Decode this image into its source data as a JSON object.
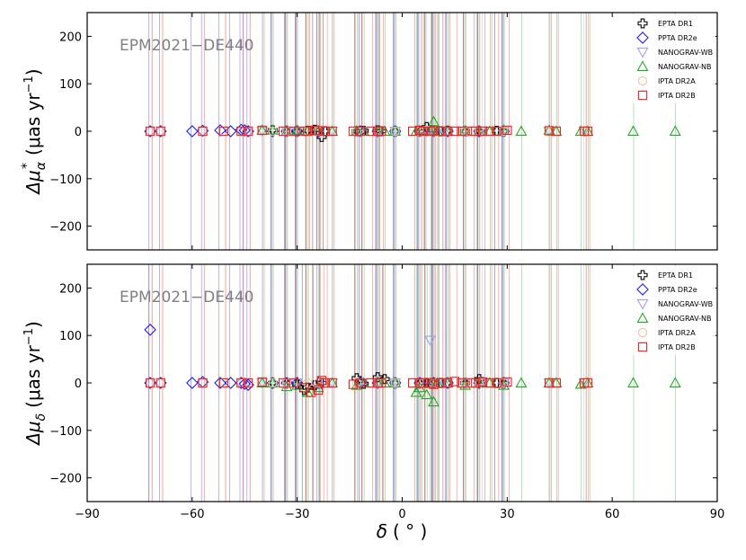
{
  "chart_data": [
    {
      "type": "scatter",
      "panel": "top",
      "annotation": "EPM2021−DE440",
      "ylabel_main": "Δμ",
      "ylabel_sub": "α",
      "ylabel_star": "*",
      "ylabel_unit": "(μas yr",
      "ylabel_exp": "−1",
      "ylabel_close": ")",
      "xlim": [
        -90,
        90
      ],
      "ylim": [
        -250,
        250
      ],
      "xticks": [
        -90,
        -60,
        -30,
        0,
        30,
        60,
        90
      ],
      "yticks": [
        -200,
        -100,
        0,
        100,
        200
      ],
      "xtick_labels": [
        "−90",
        "−60",
        "−30",
        "0",
        "30",
        "60",
        "90"
      ],
      "ytick_labels": [
        "−200",
        "−100",
        "0",
        "100",
        "200"
      ],
      "legend_position": "top-right",
      "series": [
        {
          "name": "EPTA DR1",
          "marker": "plus",
          "color": "#000000",
          "x": [
            -37,
            -33,
            -30,
            -27,
            -25,
            -23,
            -22,
            -13,
            -11,
            -7,
            -6,
            -2,
            5,
            7,
            9,
            11,
            13,
            18,
            22,
            27,
            29
          ],
          "y": [
            2,
            0,
            0,
            1,
            3,
            -12,
            0,
            0,
            1,
            2,
            0,
            0,
            0,
            9,
            2,
            0,
            1,
            0,
            0,
            1,
            0
          ]
        },
        {
          "name": "PPTA DR2e",
          "marker": "diamond",
          "color": "#2222ee",
          "x": [
            -72,
            -69,
            -60,
            -57,
            -52,
            -49,
            -46,
            -45,
            -44,
            -37,
            -33,
            -30,
            -24,
            -12,
            -7,
            -2,
            5,
            9,
            13,
            22,
            29
          ],
          "y": [
            0,
            0,
            0,
            1,
            2,
            0,
            3,
            2,
            0,
            0,
            0,
            0,
            0,
            0,
            0,
            0,
            0,
            0,
            0,
            0,
            0
          ]
        },
        {
          "name": "NANOGRAV-WB",
          "marker": "triangle-down",
          "color": "#a0a0ee",
          "x": [
            -40,
            -33,
            -30,
            -20,
            -12,
            -7,
            -2,
            5,
            7,
            9,
            12,
            18,
            23,
            29,
            42,
            52
          ],
          "y": [
            0,
            0,
            0,
            0,
            0,
            0,
            0,
            0,
            0,
            0,
            0,
            0,
            0,
            0,
            0,
            0
          ]
        },
        {
          "name": "NANOGRAV-NB",
          "marker": "triangle-up",
          "color": "#22aa22",
          "x": [
            -40,
            -37,
            -33,
            -30,
            -27,
            -24,
            -20,
            -13,
            -11,
            -7,
            -5,
            -2,
            4,
            6,
            8,
            9,
            10,
            13,
            18,
            22,
            25,
            29,
            34,
            42,
            44,
            51,
            53,
            66,
            78
          ],
          "y": [
            2,
            2,
            0,
            2,
            1,
            1,
            0,
            1,
            0,
            0,
            0,
            0,
            0,
            2,
            0,
            20,
            0,
            0,
            1,
            0,
            0,
            2,
            0,
            2,
            0,
            0,
            0,
            0,
            0
          ]
        },
        {
          "name": "IPTA DR2A",
          "marker": "circle",
          "color": "#f5c09a",
          "x": [
            -72,
            -69,
            -57,
            -51,
            -46,
            -44,
            -37,
            -33,
            -27,
            -24,
            -13,
            -7,
            -2,
            5,
            9,
            13,
            18,
            22,
            29,
            42,
            52
          ],
          "y": [
            0,
            0,
            0,
            0,
            0,
            0,
            0,
            0,
            0,
            0,
            0,
            0,
            0,
            0,
            0,
            0,
            0,
            0,
            0,
            0,
            0
          ]
        },
        {
          "name": "IPTA DR2B",
          "marker": "square",
          "color": "#ee2222",
          "x": [
            -72,
            -69,
            -57,
            -51,
            -46,
            -44,
            -40,
            -34,
            -31,
            -28,
            -27,
            -25,
            -24,
            -22,
            -20,
            -14,
            -12,
            -9,
            -7,
            -6,
            3,
            5,
            6,
            8,
            9,
            11,
            13,
            15,
            17,
            20,
            21,
            23,
            25,
            27,
            30,
            42,
            44,
            52,
            53
          ],
          "y": [
            0,
            0,
            0,
            0,
            0,
            0,
            2,
            0,
            0,
            0,
            0,
            2,
            1,
            0,
            0,
            0,
            0,
            0,
            0,
            0,
            0,
            2,
            0,
            0,
            1,
            0,
            0,
            0,
            0,
            0,
            0,
            0,
            0,
            0,
            2,
            1,
            0,
            0,
            0
          ]
        }
      ]
    },
    {
      "type": "scatter",
      "panel": "bottom",
      "annotation": "EPM2021−DE440",
      "ylabel_main": "Δμ",
      "ylabel_sub": "δ",
      "ylabel_unit": "(μas yr",
      "ylabel_exp": "−1",
      "ylabel_close": ")",
      "xlabel_main": "δ",
      "xlabel_unit": "( ° )",
      "xlim": [
        -90,
        90
      ],
      "ylim": [
        -250,
        250
      ],
      "xticks": [
        -90,
        -60,
        -30,
        0,
        30,
        60,
        90
      ],
      "yticks": [
        -200,
        -100,
        0,
        100,
        200
      ],
      "xtick_labels": [
        "−90",
        "−60",
        "−30",
        "0",
        "30",
        "60",
        "90"
      ],
      "ytick_labels": [
        "−200",
        "−100",
        "0",
        "100",
        "200"
      ],
      "legend_position": "top-right",
      "series": [
        {
          "name": "EPTA DR1",
          "marker": "plus",
          "color": "#000000",
          "x": [
            -37,
            -33,
            -30,
            -28,
            -27,
            -25,
            -23,
            -13,
            -11,
            -7,
            -5,
            -2,
            5,
            7,
            9,
            11,
            13,
            18,
            22,
            27,
            29
          ],
          "y": [
            0,
            0,
            -3,
            -15,
            -10,
            -5,
            0,
            10,
            -2,
            12,
            8,
            0,
            0,
            0,
            0,
            0,
            0,
            0,
            8,
            0,
            0
          ]
        },
        {
          "name": "PPTA DR2e",
          "marker": "diamond",
          "color": "#2222ee",
          "x": [
            -72,
            -72,
            -69,
            -60,
            -57,
            -52,
            -49,
            -46,
            -45,
            -44,
            -37,
            -33,
            -30,
            -24,
            -12,
            -7,
            -2,
            5,
            9,
            13,
            22,
            29
          ],
          "y": [
            112,
            0,
            0,
            0,
            2,
            0,
            0,
            0,
            -2,
            -4,
            0,
            0,
            0,
            0,
            0,
            0,
            0,
            0,
            0,
            0,
            0,
            0
          ]
        },
        {
          "name": "NANOGRAV-WB",
          "marker": "triangle-down",
          "color": "#a0a0ee",
          "x": [
            -40,
            -33,
            -30,
            -20,
            -12,
            -7,
            -2,
            5,
            8,
            9,
            12,
            18,
            23,
            29,
            42,
            52
          ],
          "y": [
            0,
            0,
            0,
            0,
            0,
            0,
            0,
            0,
            90,
            0,
            0,
            0,
            0,
            0,
            0,
            0
          ]
        },
        {
          "name": "NANOGRAV-NB",
          "marker": "triangle-up",
          "color": "#22aa22",
          "x": [
            -40,
            -37,
            -33,
            -30,
            -27,
            -24,
            -20,
            -13,
            -11,
            -7,
            -5,
            -2,
            4,
            5,
            7,
            8,
            9,
            10,
            13,
            18,
            22,
            25,
            29,
            34,
            42,
            44,
            51,
            53,
            66,
            78
          ],
          "y": [
            0,
            0,
            -8,
            -5,
            -20,
            -10,
            0,
            -5,
            0,
            0,
            0,
            0,
            -20,
            -10,
            -25,
            0,
            -40,
            0,
            0,
            -5,
            0,
            0,
            -5,
            0,
            0,
            0,
            -3,
            0,
            0,
            0
          ]
        },
        {
          "name": "IPTA DR2A",
          "marker": "circle",
          "color": "#f5c09a",
          "x": [
            -72,
            -69,
            -57,
            -51,
            -46,
            -44,
            -37,
            -33,
            -27,
            -24,
            -13,
            -7,
            -2,
            5,
            9,
            13,
            18,
            22,
            29,
            42,
            52
          ],
          "y": [
            0,
            0,
            0,
            0,
            0,
            0,
            0,
            0,
            0,
            0,
            0,
            0,
            0,
            0,
            0,
            0,
            0,
            0,
            0,
            0,
            0
          ]
        },
        {
          "name": "IPTA DR2B",
          "marker": "square",
          "color": "#ee2222",
          "x": [
            -72,
            -69,
            -57,
            -51,
            -46,
            -44,
            -40,
            -34,
            -31,
            -28,
            -26,
            -24,
            -23,
            -22,
            -20,
            -14,
            -12,
            -9,
            -7,
            -6,
            3,
            5,
            6,
            8,
            9,
            11,
            13,
            15,
            17,
            20,
            21,
            23,
            25,
            27,
            30,
            42,
            44,
            52,
            53
          ],
          "y": [
            0,
            0,
            0,
            0,
            0,
            0,
            2,
            0,
            0,
            -10,
            -20,
            -15,
            5,
            0,
            0,
            -3,
            0,
            0,
            0,
            0,
            0,
            0,
            0,
            0,
            -3,
            0,
            0,
            3,
            0,
            0,
            0,
            2,
            0,
            0,
            2,
            0,
            0,
            0,
            0
          ]
        }
      ]
    }
  ]
}
